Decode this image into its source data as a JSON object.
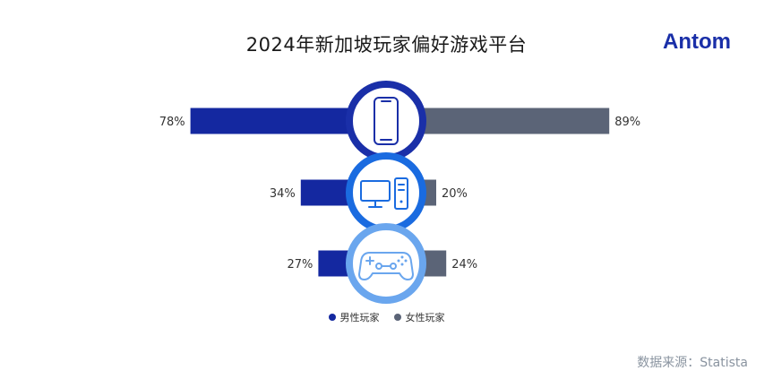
{
  "title": "2024年新加坡玩家偏好游戏平台",
  "brand": "Antom",
  "source": "数据来源：Statista",
  "colors": {
    "male": "#1428a0",
    "female": "#5b6477",
    "ring_mobile": "#1a2fa8",
    "ring_pc": "#1a6be0",
    "ring_console": "#6aa6ee",
    "brand": "#1a2fa8"
  },
  "chart_data": {
    "type": "bar",
    "orientation": "horizontal-diverging",
    "categories": [
      "mobile",
      "pc",
      "console"
    ],
    "category_icons": [
      "smartphone-icon",
      "desktop-computer-icon",
      "gamepad-icon"
    ],
    "series": [
      {
        "name": "男性玩家",
        "values": [
          78,
          34,
          27
        ],
        "labels": [
          "78%",
          "34%",
          "27%"
        ],
        "color": "#1428a0"
      },
      {
        "name": "女性玩家",
        "values": [
          89,
          20,
          24
        ],
        "labels": [
          "89%",
          "20%",
          "24%"
        ],
        "color": "#5b6477"
      }
    ],
    "unit": "%",
    "legend_position": "bottom-center"
  }
}
